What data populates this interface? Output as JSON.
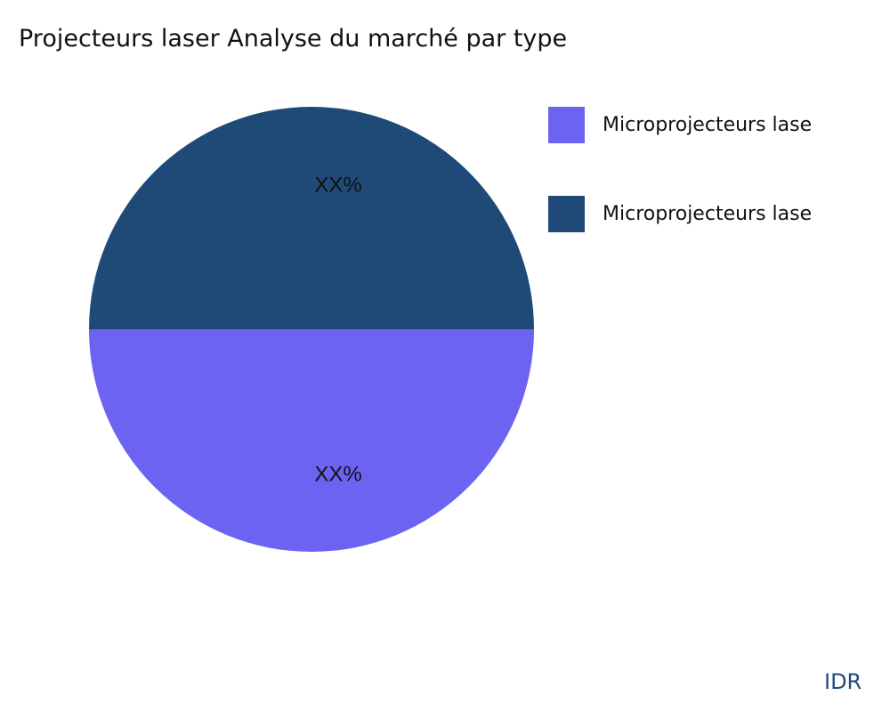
{
  "chart_data": {
    "type": "pie",
    "title": "Projecteurs laser Analyse du marché par type",
    "slices": [
      {
        "name": "Microprojecteurs lase",
        "value": 50,
        "label": "XX%",
        "color": "#6c63f2"
      },
      {
        "name": "Microprojecteurs lase",
        "value": 50,
        "label": "XX%",
        "color": "#1f4a78"
      }
    ],
    "legend_position": "right"
  },
  "watermark": "IDR"
}
